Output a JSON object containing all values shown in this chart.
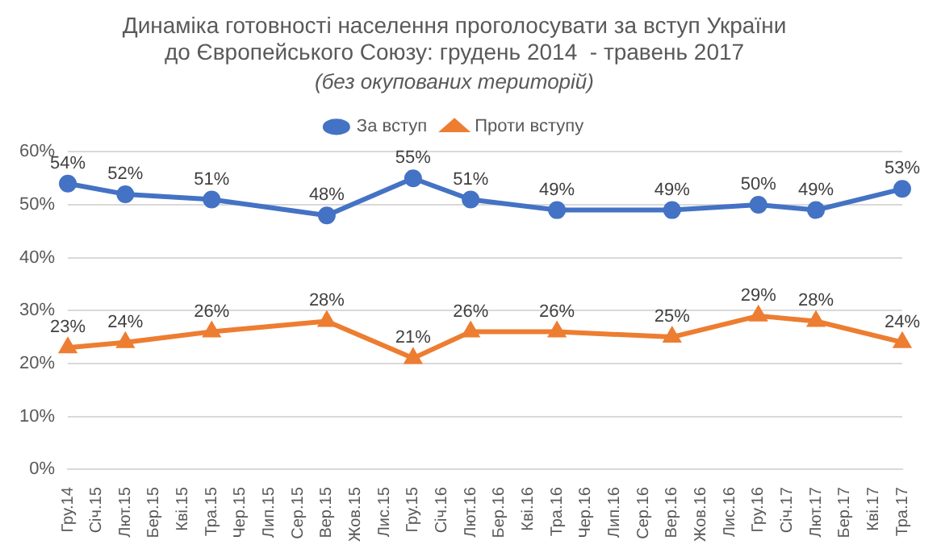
{
  "chart_data": {
    "type": "line",
    "title": "Динаміка готовності населення проголосувати за вступ України до Європейського Союзу: грудень 2014  - травень 2017",
    "subtitle": "(без окупованих територій)",
    "categories": [
      "Гру.14",
      "Січ.15",
      "Лют.15",
      "Бер.15",
      "Кві.15",
      "Тра.15",
      "Чер.15",
      "Лип.15",
      "Сер.15",
      "Вер.15",
      "Жов.15",
      "Лис.15",
      "Гру.15",
      "Січ.16",
      "Лют.16",
      "Бер.16",
      "Кві.16",
      "Тра.16",
      "Чер.16",
      "Лип.16",
      "Сер.16",
      "Вер.16",
      "Жов.16",
      "Лис.16",
      "Гру.16",
      "Січ.17",
      "Лют.17",
      "Бер.17",
      "Кві.17",
      "Тра.17"
    ],
    "series": [
      {
        "name": "За вступ",
        "color": "#4472c4",
        "marker": "circle",
        "values": [
          54,
          null,
          52,
          null,
          null,
          51,
          null,
          null,
          null,
          48,
          null,
          null,
          55,
          null,
          51,
          null,
          null,
          49,
          null,
          null,
          null,
          49,
          null,
          null,
          50,
          null,
          49,
          null,
          null,
          53
        ],
        "value_labels": [
          "54%",
          null,
          "52%",
          null,
          null,
          "51%",
          null,
          null,
          null,
          "48%",
          null,
          null,
          "55%",
          null,
          "51%",
          null,
          null,
          "49%",
          null,
          null,
          null,
          "49%",
          null,
          null,
          "50%",
          null,
          "49%",
          null,
          null,
          "53%"
        ]
      },
      {
        "name": "Проти вступу",
        "color": "#ed7d31",
        "marker": "triangle",
        "values": [
          23,
          null,
          24,
          null,
          null,
          26,
          null,
          null,
          null,
          28,
          null,
          null,
          21,
          null,
          26,
          null,
          null,
          26,
          null,
          null,
          null,
          25,
          null,
          null,
          29,
          null,
          28,
          null,
          null,
          24
        ],
        "value_labels": [
          "23%",
          null,
          "24%",
          null,
          null,
          "26%",
          null,
          null,
          null,
          "28%",
          null,
          null,
          "21%",
          null,
          "26%",
          null,
          null,
          "26%",
          null,
          null,
          null,
          "25%",
          null,
          null,
          "29%",
          null,
          "28%",
          null,
          null,
          "24%"
        ]
      }
    ],
    "ylim": [
      0,
      60
    ],
    "yticks": [
      {
        "value": 0,
        "label": "0%"
      },
      {
        "value": 10,
        "label": "10%"
      },
      {
        "value": 20,
        "label": "20%"
      },
      {
        "value": 30,
        "label": "30%"
      },
      {
        "value": 40,
        "label": "40%"
      },
      {
        "value": 50,
        "label": "50%"
      },
      {
        "value": 60,
        "label": "60%"
      }
    ],
    "grid": "y",
    "legend": "top",
    "line_style": "solid"
  }
}
